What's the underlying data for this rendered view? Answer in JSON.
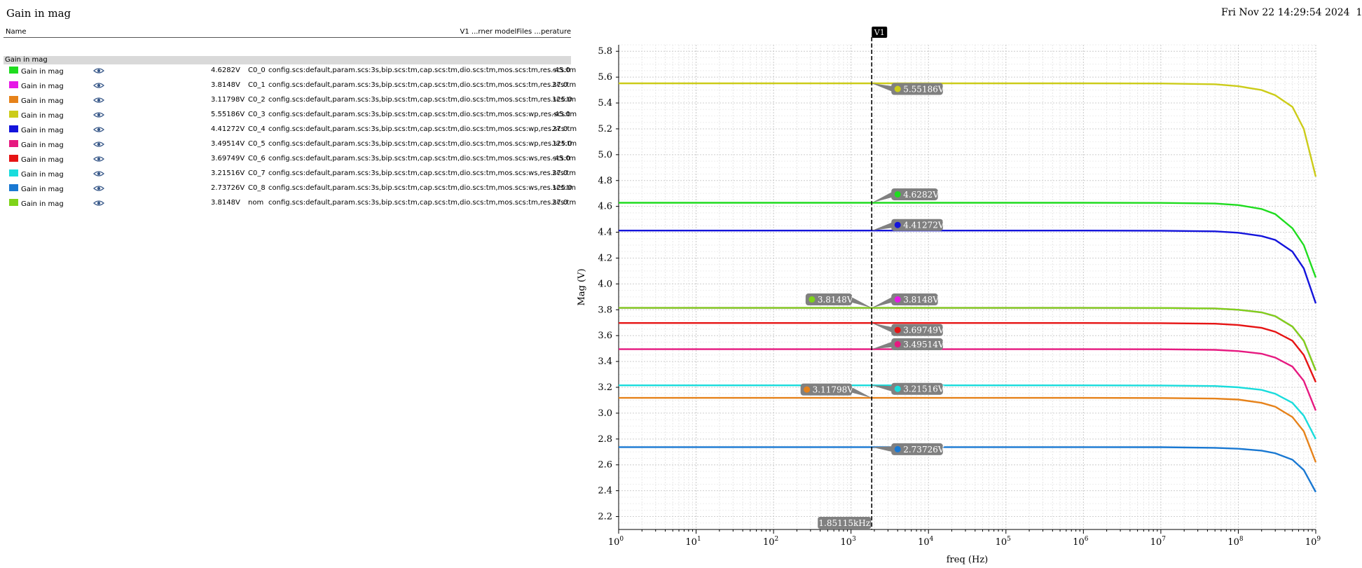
{
  "window": {
    "title": "Gain in mag",
    "timestamp": "Fri Nov 22 14:29:54 2024",
    "page": "1"
  },
  "legend": {
    "header_name": "Name",
    "header_right": "V1 ...rner modelFiles ...perature",
    "group_label": "Gain in mag",
    "rows": [
      {
        "name": "Gain in mag",
        "value": "4.6282V",
        "corner": "C0_0",
        "config": "config.scs:default,param.scs:3s,bip.scs:tm,cap.scs:tm,dio.scs:tm,mos.scs:tm,res.scs:tm",
        "temp": "-45.0",
        "color": "#1fdc1f"
      },
      {
        "name": "Gain in mag",
        "value": "3.8148V",
        "corner": "C0_1",
        "config": "config.scs:default,param.scs:3s,bip.scs:tm,cap.scs:tm,dio.scs:tm,mos.scs:tm,res.scs:tm",
        "temp": "27.0",
        "color": "#e619e6"
      },
      {
        "name": "Gain in mag",
        "value": "3.11798V",
        "corner": "C0_2",
        "config": "config.scs:default,param.scs:3s,bip.scs:tm,cap.scs:tm,dio.scs:tm,mos.scs:tm,res.scs:tm",
        "temp": "125.0",
        "color": "#e6821a"
      },
      {
        "name": "Gain in mag",
        "value": "5.55186V",
        "corner": "C0_3",
        "config": "config.scs:default,param.scs:3s,bip.scs:tm,cap.scs:tm,dio.scs:tm,mos.scs:wp,res.scs:tm",
        "temp": "-45.0",
        "color": "#cccc19"
      },
      {
        "name": "Gain in mag",
        "value": "4.41272V",
        "corner": "C0_4",
        "config": "config.scs:default,param.scs:3s,bip.scs:tm,cap.scs:tm,dio.scs:tm,mos.scs:wp,res.scs:tm",
        "temp": "27.0",
        "color": "#1414dc"
      },
      {
        "name": "Gain in mag",
        "value": "3.49514V",
        "corner": "C0_5",
        "config": "config.scs:default,param.scs:3s,bip.scs:tm,cap.scs:tm,dio.scs:tm,mos.scs:wp,res.scs:tm",
        "temp": "125.0",
        "color": "#e61980"
      },
      {
        "name": "Gain in mag",
        "value": "3.69749V",
        "corner": "C0_6",
        "config": "config.scs:default,param.scs:3s,bip.scs:tm,cap.scs:tm,dio.scs:tm,mos.scs:ws,res.scs:tm",
        "temp": "-45.0",
        "color": "#e61414"
      },
      {
        "name": "Gain in mag",
        "value": "3.21516V",
        "corner": "C0_7",
        "config": "config.scs:default,param.scs:3s,bip.scs:tm,cap.scs:tm,dio.scs:tm,mos.scs:ws,res.scs:tm",
        "temp": "27.0",
        "color": "#19dcdc"
      },
      {
        "name": "Gain in mag",
        "value": "2.73726V",
        "corner": "C0_8",
        "config": "config.scs:default,param.scs:3s,bip.scs:tm,cap.scs:tm,dio.scs:tm,mos.scs:ws,res.scs:tm",
        "temp": "125.0",
        "color": "#1978d2"
      },
      {
        "name": "Gain in mag",
        "value": "3.8148V",
        "corner": "nom",
        "config": "config.scs:default,param.scs:3s,bip.scs:tm,cap.scs:tm,dio.scs:tm,mos.scs:tm,res.scs:tm",
        "temp": "27.0",
        "color": "#7ed319"
      }
    ]
  },
  "chart_data": {
    "type": "line",
    "title": "Gain in mag",
    "xlabel": "freq (Hz)",
    "ylabel": "Mag (V)",
    "xscale": "log",
    "xlim": [
      1,
      1000000000
    ],
    "ylim": [
      2.1,
      5.85
    ],
    "x_tick_labels": [
      "10^0",
      "10^1",
      "10^2",
      "10^3",
      "10^4",
      "10^5",
      "10^6",
      "10^7",
      "10^8",
      "10^9"
    ],
    "y_ticks": [
      2.2,
      2.4,
      2.6,
      2.8,
      3.0,
      3.2,
      3.4,
      3.6,
      3.8,
      4.0,
      4.2,
      4.4,
      4.6,
      4.8,
      5.0,
      5.2,
      5.4,
      5.6,
      5.8
    ],
    "y_tick_labels": [
      "2.2",
      "2.4",
      "2.6",
      "2.8",
      "3.0",
      "3.2",
      "3.4",
      "3.6",
      "3.8",
      "4.0",
      "4.2",
      "4.4",
      "4.6",
      "4.8",
      "5.0",
      "5.2",
      "5.4",
      "5.6",
      "5.8"
    ],
    "grid": true,
    "x": [
      1,
      10,
      100,
      1000,
      10000,
      100000,
      1000000,
      10000000,
      50000000,
      100000000,
      200000000,
      300000000,
      500000000,
      700000000,
      1000000000
    ],
    "series": [
      {
        "name": "C0_0",
        "color": "#1fdc1f",
        "values": [
          4.6282,
          4.6282,
          4.6282,
          4.6282,
          4.6282,
          4.6282,
          4.6282,
          4.627,
          4.622,
          4.61,
          4.58,
          4.54,
          4.43,
          4.3,
          4.05
        ]
      },
      {
        "name": "C0_1",
        "color": "#e619e6",
        "values": [
          3.8148,
          3.8148,
          3.8148,
          3.8148,
          3.8148,
          3.8148,
          3.8148,
          3.8138,
          3.81,
          3.8,
          3.78,
          3.75,
          3.67,
          3.56,
          3.33
        ]
      },
      {
        "name": "C0_2",
        "color": "#e6821a",
        "values": [
          3.11798,
          3.11798,
          3.11798,
          3.11798,
          3.11798,
          3.11798,
          3.11798,
          3.1172,
          3.113,
          3.105,
          3.08,
          3.05,
          2.97,
          2.86,
          2.62
        ]
      },
      {
        "name": "C0_3",
        "color": "#cccc19",
        "values": [
          5.55186,
          5.55186,
          5.55186,
          5.55186,
          5.55186,
          5.55186,
          5.55186,
          5.551,
          5.545,
          5.53,
          5.5,
          5.46,
          5.37,
          5.2,
          4.83
        ]
      },
      {
        "name": "C0_4",
        "color": "#1414dc",
        "values": [
          4.41272,
          4.41272,
          4.41272,
          4.41272,
          4.41272,
          4.41272,
          4.41272,
          4.4118,
          4.407,
          4.396,
          4.37,
          4.34,
          4.25,
          4.12,
          3.85
        ]
      },
      {
        "name": "C0_5",
        "color": "#e61980",
        "values": [
          3.49514,
          3.49514,
          3.49514,
          3.49514,
          3.49514,
          3.49514,
          3.49514,
          3.4943,
          3.49,
          3.48,
          3.46,
          3.43,
          3.36,
          3.25,
          3.02
        ]
      },
      {
        "name": "C0_6",
        "color": "#e61414",
        "values": [
          3.69749,
          3.69749,
          3.69749,
          3.69749,
          3.69749,
          3.69749,
          3.69749,
          3.6966,
          3.692,
          3.682,
          3.66,
          3.63,
          3.56,
          3.45,
          3.24
        ]
      },
      {
        "name": "C0_7",
        "color": "#19dcdc",
        "values": [
          3.21516,
          3.21516,
          3.21516,
          3.21516,
          3.21516,
          3.21516,
          3.21516,
          3.2143,
          3.21,
          3.2,
          3.18,
          3.15,
          3.08,
          2.98,
          2.8
        ]
      },
      {
        "name": "C0_8",
        "color": "#1978d2",
        "values": [
          2.73726,
          2.73726,
          2.73726,
          2.73726,
          2.73726,
          2.73726,
          2.73726,
          2.7365,
          2.732,
          2.725,
          2.71,
          2.69,
          2.64,
          2.56,
          2.39
        ]
      },
      {
        "name": "nom",
        "color": "#7ed319",
        "values": [
          3.8148,
          3.8148,
          3.8148,
          3.8148,
          3.8148,
          3.8148,
          3.8148,
          3.8138,
          3.81,
          3.8,
          3.78,
          3.75,
          3.67,
          3.56,
          3.33
        ]
      }
    ],
    "marker": {
      "name": "V1",
      "x": 1851.15,
      "x_label": "1.85115kHz",
      "readouts": [
        {
          "series": "C0_3",
          "label": "5.55186V",
          "side": "right",
          "color": "#cccc19"
        },
        {
          "series": "C0_0",
          "label": "4.6282V",
          "side": "right",
          "color": "#1fdc1f"
        },
        {
          "series": "C0_4",
          "label": "4.41272V",
          "side": "right",
          "color": "#1414dc"
        },
        {
          "series": "nom",
          "label": "3.8148V",
          "side": "left",
          "color": "#7ed319"
        },
        {
          "series": "C0_1",
          "label": "3.8148V",
          "side": "right",
          "color": "#e619e6"
        },
        {
          "series": "C0_6",
          "label": "3.69749V",
          "side": "right",
          "color": "#e61414"
        },
        {
          "series": "C0_5",
          "label": "3.49514V",
          "side": "right",
          "color": "#e61980"
        },
        {
          "series": "C0_2",
          "label": "3.11798V",
          "side": "left",
          "color": "#e6821a"
        },
        {
          "series": "C0_7",
          "label": "3.21516V",
          "side": "right",
          "color": "#19dcdc"
        },
        {
          "series": "C0_8",
          "label": "2.73726V",
          "side": "right",
          "color": "#1978d2"
        }
      ]
    }
  }
}
